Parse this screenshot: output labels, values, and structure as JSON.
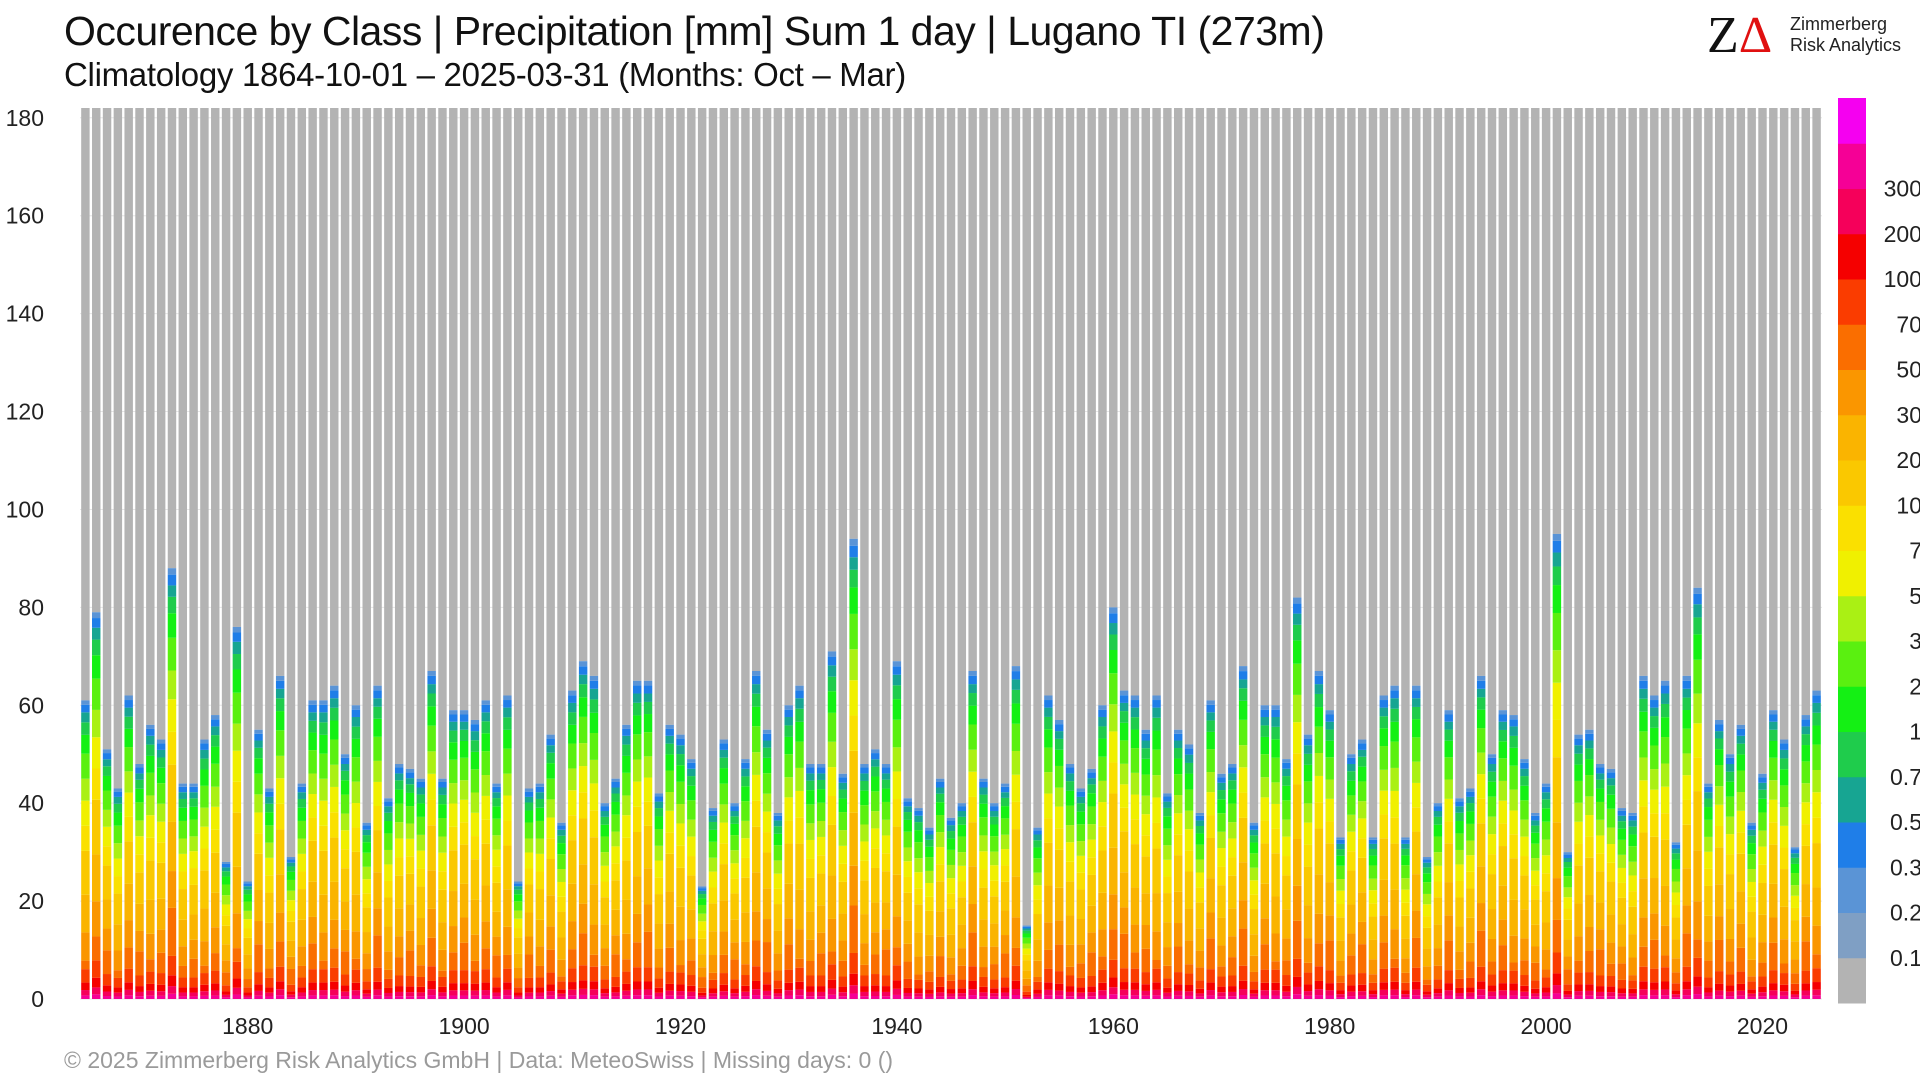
{
  "header": {
    "title": "Occurence by Class | Precipitation [mm] Sum 1 day | Lugano  TI (273m)",
    "subtitle": "Climatology 1864-10-01 – 2025-03-31 (Months: Oct – Mar)"
  },
  "logo": {
    "mark": "ZΔ",
    "line1": "Zimmerberg",
    "line2": "Risk Analytics"
  },
  "footer": {
    "text": "©  2025 Zimmerberg Risk Analytics GmbH | Data: MeteoSwiss | Missing days: 0 ()"
  },
  "chart_data": {
    "type": "bar",
    "stacked": true,
    "title": "Occurence by Class | Precipitation [mm] Sum 1 day | Lugano  TI (273m)",
    "subtitle": "Climatology 1864-10-01 – 2025-03-31 (Months: Oct – Mar)",
    "xlabel": "",
    "ylabel": "",
    "ylim": [
      0,
      182
    ],
    "yticks": [
      0,
      20,
      40,
      60,
      80,
      100,
      120,
      140,
      160,
      180
    ],
    "xticks": [
      1880,
      1900,
      1920,
      1940,
      1960,
      1980,
      2000,
      2020
    ],
    "x_start": 1865,
    "x_end": 2025,
    "days_per_season": 182,
    "grid": "horizontal",
    "legend": "colorbar-right",
    "class_thresholds": [
      "0.1",
      "0.2",
      "0.3",
      "0.5",
      "0.7",
      "1",
      "2",
      "3",
      "5",
      "7",
      "10",
      "20",
      "30",
      "50",
      "70",
      "100",
      "200",
      "300"
    ],
    "class_colors": [
      "#b3b3b3",
      "#7f9fc4",
      "#5a94d6",
      "#1f7ee8",
      "#17a592",
      "#1fcc4c",
      "#14f014",
      "#5af010",
      "#aaf014",
      "#f0f000",
      "#fae000",
      "#fac800",
      "#fab400",
      "#fa9600",
      "#fa6e00",
      "#fa3c00",
      "#f50000",
      "#f5005a",
      "#f50096",
      "#f500f0"
    ],
    "wet_day_totals": [
      {
        "x": 1865,
        "y": 61
      },
      {
        "x": 1866,
        "y": 79
      },
      {
        "x": 1867,
        "y": 51
      },
      {
        "x": 1868,
        "y": 43
      },
      {
        "x": 1869,
        "y": 62
      },
      {
        "x": 1870,
        "y": 48
      },
      {
        "x": 1871,
        "y": 56
      },
      {
        "x": 1872,
        "y": 53
      },
      {
        "x": 1873,
        "y": 88
      },
      {
        "x": 1874,
        "y": 44
      },
      {
        "x": 1875,
        "y": 44
      },
      {
        "x": 1876,
        "y": 53
      },
      {
        "x": 1877,
        "y": 58
      },
      {
        "x": 1878,
        "y": 28
      },
      {
        "x": 1879,
        "y": 76
      },
      {
        "x": 1880,
        "y": 24
      },
      {
        "x": 1881,
        "y": 55
      },
      {
        "x": 1882,
        "y": 43
      },
      {
        "x": 1883,
        "y": 66
      },
      {
        "x": 1884,
        "y": 29
      },
      {
        "x": 1885,
        "y": 44
      },
      {
        "x": 1886,
        "y": 61
      },
      {
        "x": 1887,
        "y": 61
      },
      {
        "x": 1888,
        "y": 64
      },
      {
        "x": 1889,
        "y": 50
      },
      {
        "x": 1890,
        "y": 60
      },
      {
        "x": 1891,
        "y": 36
      },
      {
        "x": 1892,
        "y": 64
      },
      {
        "x": 1893,
        "y": 41
      },
      {
        "x": 1894,
        "y": 48
      },
      {
        "x": 1895,
        "y": 47
      },
      {
        "x": 1896,
        "y": 45
      },
      {
        "x": 1897,
        "y": 67
      },
      {
        "x": 1898,
        "y": 45
      },
      {
        "x": 1899,
        "y": 59
      },
      {
        "x": 1900,
        "y": 59
      },
      {
        "x": 1901,
        "y": 57
      },
      {
        "x": 1902,
        "y": 61
      },
      {
        "x": 1903,
        "y": 44
      },
      {
        "x": 1904,
        "y": 62
      },
      {
        "x": 1905,
        "y": 24
      },
      {
        "x": 1906,
        "y": 43
      },
      {
        "x": 1907,
        "y": 44
      },
      {
        "x": 1908,
        "y": 54
      },
      {
        "x": 1909,
        "y": 36
      },
      {
        "x": 1910,
        "y": 63
      },
      {
        "x": 1911,
        "y": 69
      },
      {
        "x": 1912,
        "y": 66
      },
      {
        "x": 1913,
        "y": 40
      },
      {
        "x": 1914,
        "y": 45
      },
      {
        "x": 1915,
        "y": 56
      },
      {
        "x": 1916,
        "y": 65
      },
      {
        "x": 1917,
        "y": 65
      },
      {
        "x": 1918,
        "y": 42
      },
      {
        "x": 1919,
        "y": 56
      },
      {
        "x": 1920,
        "y": 54
      },
      {
        "x": 1921,
        "y": 49
      },
      {
        "x": 1922,
        "y": 23
      },
      {
        "x": 1923,
        "y": 39
      },
      {
        "x": 1924,
        "y": 53
      },
      {
        "x": 1925,
        "y": 40
      },
      {
        "x": 1926,
        "y": 49
      },
      {
        "x": 1927,
        "y": 67
      },
      {
        "x": 1928,
        "y": 55
      },
      {
        "x": 1929,
        "y": 38
      },
      {
        "x": 1930,
        "y": 60
      },
      {
        "x": 1931,
        "y": 64
      },
      {
        "x": 1932,
        "y": 48
      },
      {
        "x": 1933,
        "y": 48
      },
      {
        "x": 1934,
        "y": 71
      },
      {
        "x": 1935,
        "y": 46
      },
      {
        "x": 1936,
        "y": 94
      },
      {
        "x": 1937,
        "y": 48
      },
      {
        "x": 1938,
        "y": 51
      },
      {
        "x": 1939,
        "y": 48
      },
      {
        "x": 1940,
        "y": 69
      },
      {
        "x": 1941,
        "y": 41
      },
      {
        "x": 1942,
        "y": 39
      },
      {
        "x": 1943,
        "y": 35
      },
      {
        "x": 1944,
        "y": 45
      },
      {
        "x": 1945,
        "y": 37
      },
      {
        "x": 1946,
        "y": 40
      },
      {
        "x": 1947,
        "y": 67
      },
      {
        "x": 1948,
        "y": 45
      },
      {
        "x": 1949,
        "y": 40
      },
      {
        "x": 1950,
        "y": 44
      },
      {
        "x": 1951,
        "y": 68
      },
      {
        "x": 1952,
        "y": 15
      },
      {
        "x": 1953,
        "y": 35
      },
      {
        "x": 1954,
        "y": 62
      },
      {
        "x": 1955,
        "y": 57
      },
      {
        "x": 1956,
        "y": 48
      },
      {
        "x": 1957,
        "y": 43
      },
      {
        "x": 1958,
        "y": 47
      },
      {
        "x": 1959,
        "y": 60
      },
      {
        "x": 1960,
        "y": 80
      },
      {
        "x": 1961,
        "y": 63
      },
      {
        "x": 1962,
        "y": 62
      },
      {
        "x": 1963,
        "y": 55
      },
      {
        "x": 1964,
        "y": 62
      },
      {
        "x": 1965,
        "y": 42
      },
      {
        "x": 1966,
        "y": 55
      },
      {
        "x": 1967,
        "y": 52
      },
      {
        "x": 1968,
        "y": 38
      },
      {
        "x": 1969,
        "y": 61
      },
      {
        "x": 1970,
        "y": 46
      },
      {
        "x": 1971,
        "y": 48
      },
      {
        "x": 1972,
        "y": 68
      },
      {
        "x": 1973,
        "y": 36
      },
      {
        "x": 1974,
        "y": 60
      },
      {
        "x": 1975,
        "y": 60
      },
      {
        "x": 1976,
        "y": 49
      },
      {
        "x": 1977,
        "y": 82
      },
      {
        "x": 1978,
        "y": 54
      },
      {
        "x": 1979,
        "y": 67
      },
      {
        "x": 1980,
        "y": 59
      },
      {
        "x": 1981,
        "y": 33
      },
      {
        "x": 1982,
        "y": 50
      },
      {
        "x": 1983,
        "y": 53
      },
      {
        "x": 1984,
        "y": 33
      },
      {
        "x": 1985,
        "y": 62
      },
      {
        "x": 1986,
        "y": 64
      },
      {
        "x": 1987,
        "y": 33
      },
      {
        "x": 1988,
        "y": 64
      },
      {
        "x": 1989,
        "y": 29
      },
      {
        "x": 1990,
        "y": 40
      },
      {
        "x": 1991,
        "y": 59
      },
      {
        "x": 1992,
        "y": 41
      },
      {
        "x": 1993,
        "y": 43
      },
      {
        "x": 1994,
        "y": 66
      },
      {
        "x": 1995,
        "y": 50
      },
      {
        "x": 1996,
        "y": 59
      },
      {
        "x": 1997,
        "y": 58
      },
      {
        "x": 1998,
        "y": 49
      },
      {
        "x": 1999,
        "y": 38
      },
      {
        "x": 2000,
        "y": 44
      },
      {
        "x": 2001,
        "y": 95
      },
      {
        "x": 2002,
        "y": 30
      },
      {
        "x": 2003,
        "y": 54
      },
      {
        "x": 2004,
        "y": 55
      },
      {
        "x": 2005,
        "y": 48
      },
      {
        "x": 2006,
        "y": 47
      },
      {
        "x": 2007,
        "y": 39
      },
      {
        "x": 2008,
        "y": 38
      },
      {
        "x": 2009,
        "y": 66
      },
      {
        "x": 2010,
        "y": 62
      },
      {
        "x": 2011,
        "y": 65
      },
      {
        "x": 2012,
        "y": 32
      },
      {
        "x": 2013,
        "y": 66
      },
      {
        "x": 2014,
        "y": 84
      },
      {
        "x": 2015,
        "y": 44
      },
      {
        "x": 2016,
        "y": 57
      },
      {
        "x": 2017,
        "y": 50
      },
      {
        "x": 2018,
        "y": 56
      },
      {
        "x": 2019,
        "y": 36
      },
      {
        "x": 2020,
        "y": 46
      },
      {
        "x": 2021,
        "y": 59
      },
      {
        "x": 2022,
        "y": 53
      },
      {
        "x": 2023,
        "y": 31
      },
      {
        "x": 2024,
        "y": 58
      },
      {
        "x": 2025,
        "y": 63
      }
    ]
  }
}
